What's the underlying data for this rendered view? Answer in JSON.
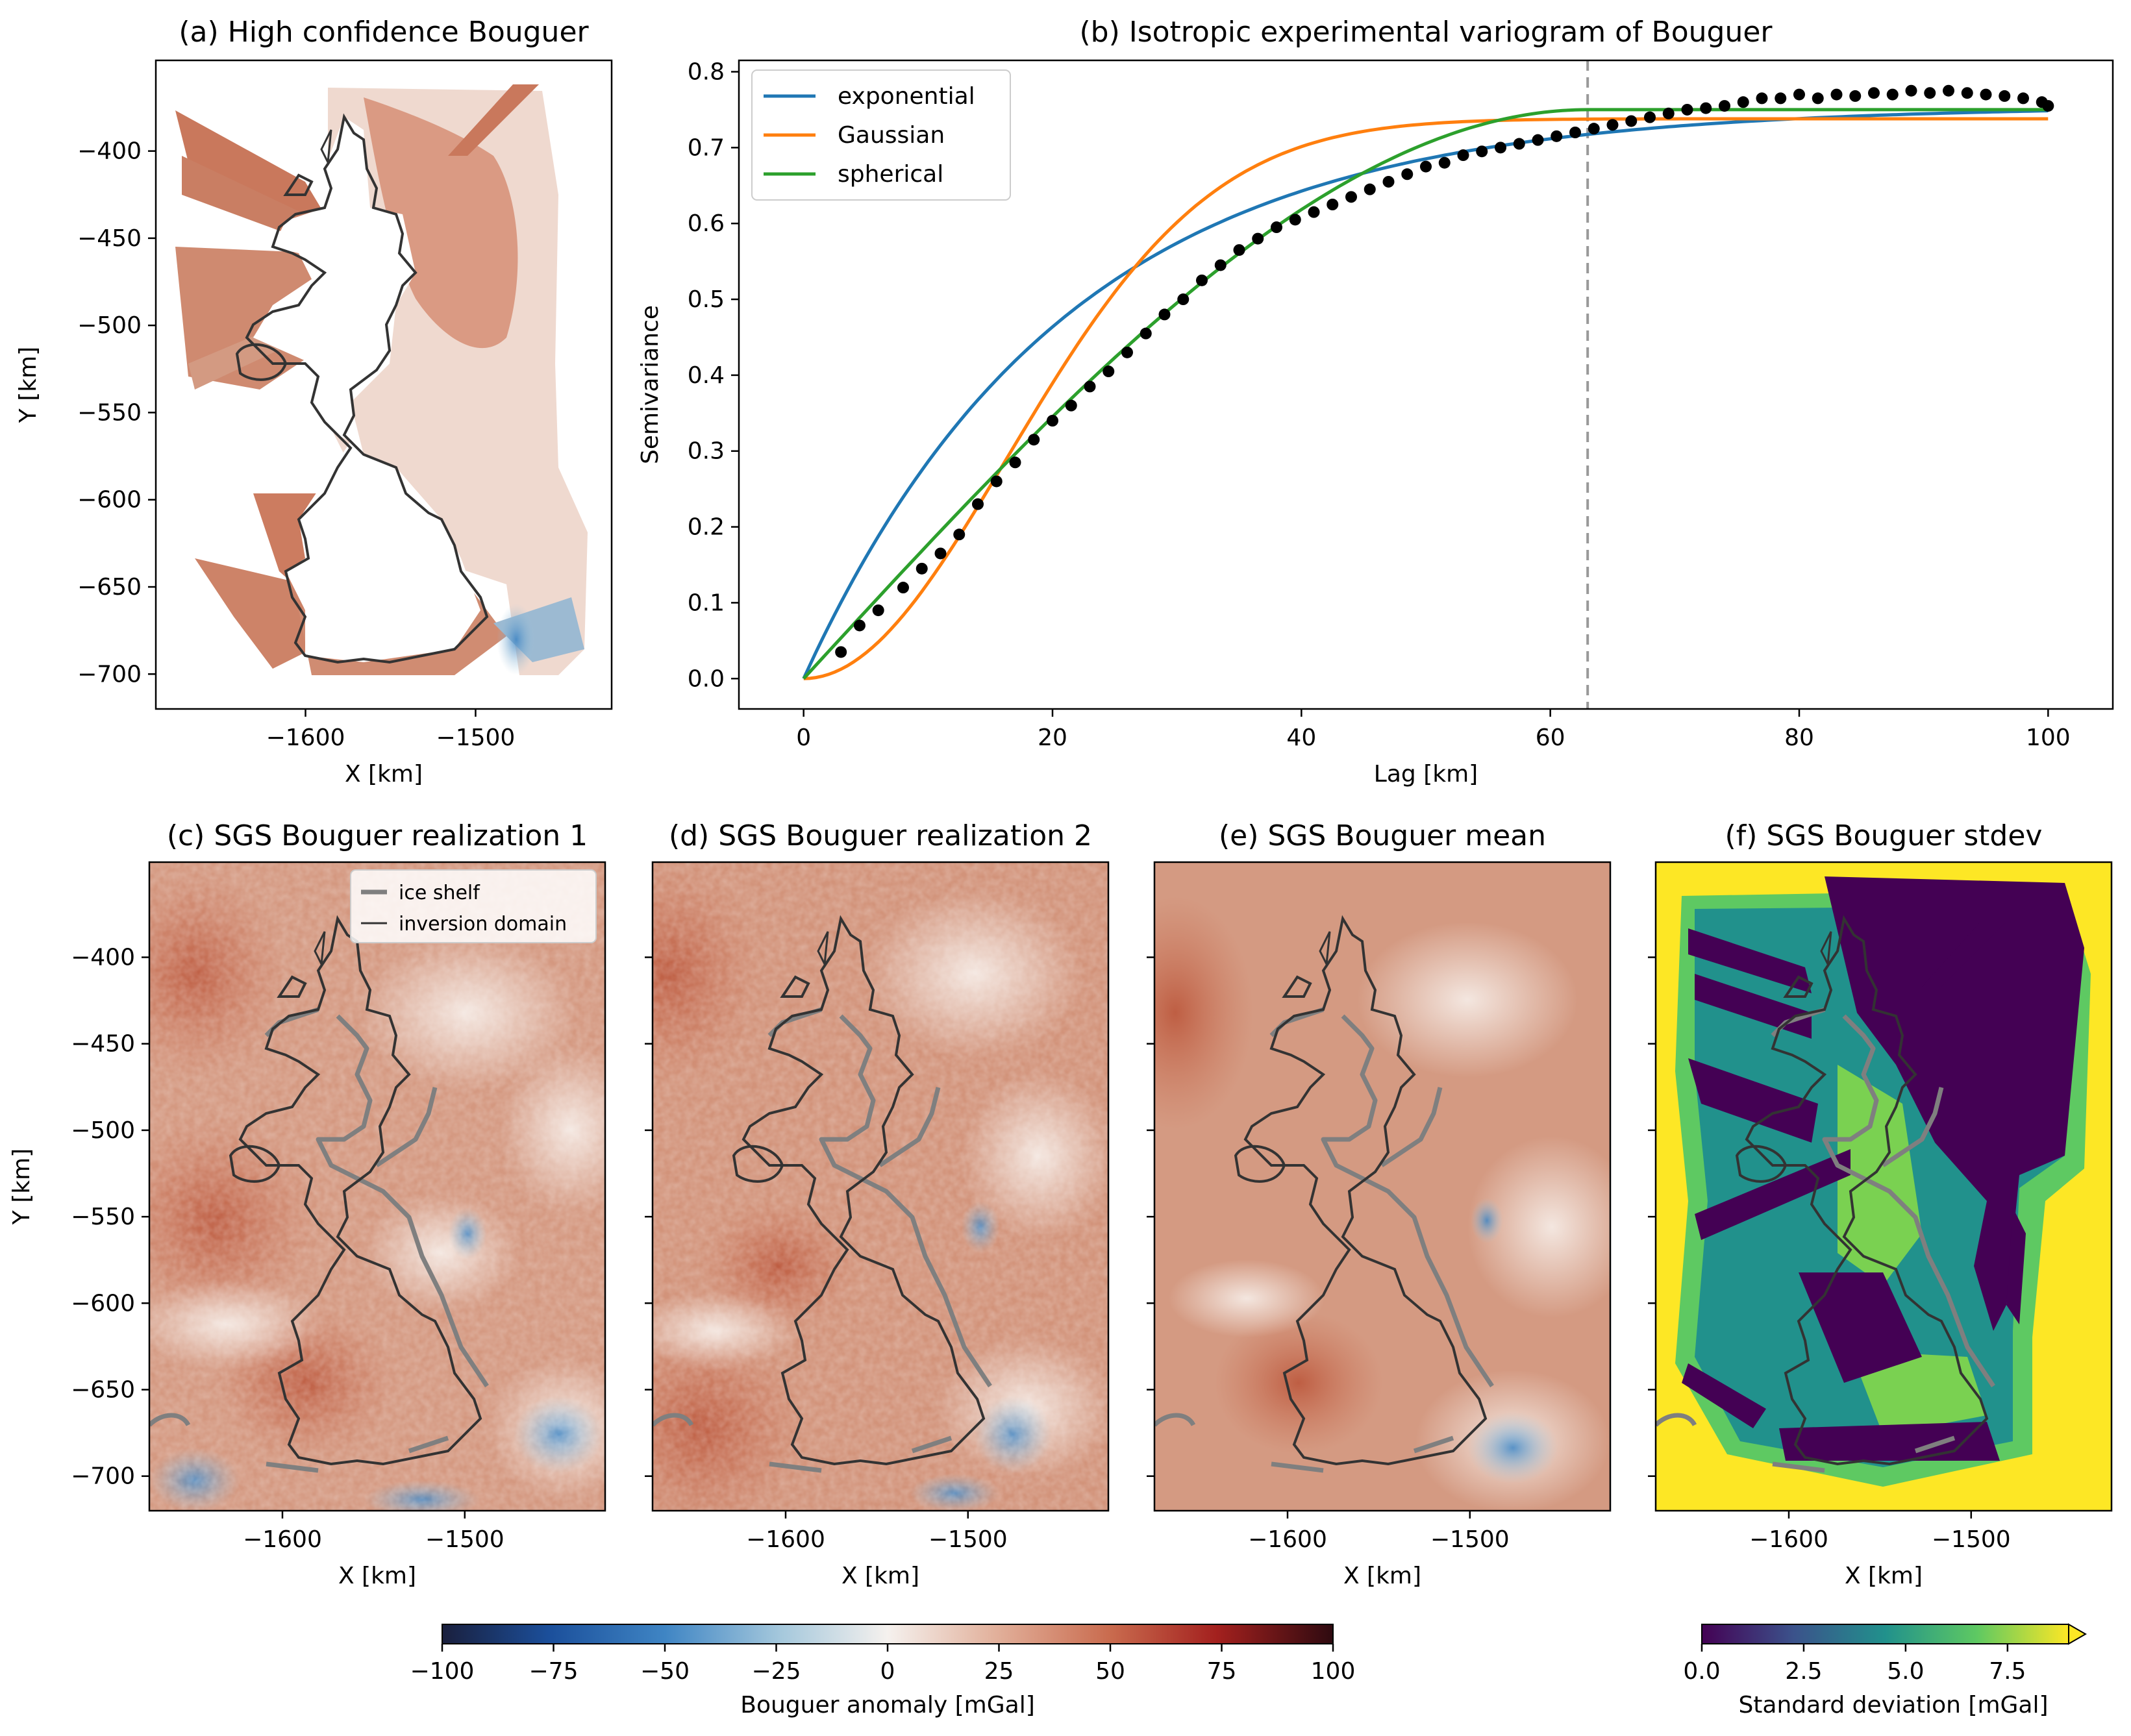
{
  "chart_data": [
    {
      "panel": "a",
      "type": "heatmap",
      "title": "(a) High confidence Bouguer",
      "xlabel": "X [km]",
      "ylabel": "Y [km]",
      "xlim": [
        -1688,
        -1420
      ],
      "ylim": [
        -720,
        -348
      ],
      "xticks": [
        -1600,
        -1500
      ],
      "yticks": [
        -400,
        -450,
        -500,
        -550,
        -600,
        -650,
        -700
      ],
      "xtick_labels": [
        "−1600",
        "−1500"
      ],
      "ytick_labels": [
        "−400",
        "−450",
        "−500",
        "−550",
        "−600",
        "−650",
        "−700"
      ],
      "colormap": "diverging blue-white-red",
      "color_range": [
        -100,
        100
      ]
    },
    {
      "panel": "b",
      "type": "scatter",
      "title": "(b) Isotropic experimental variogram of Bouguer",
      "xlabel": "Lag [km]",
      "ylabel": "Semivariance",
      "xlim": [
        -5.2,
        105.2
      ],
      "ylim": [
        -0.04,
        0.815
      ],
      "xticks": [
        0,
        20,
        40,
        60,
        80,
        100
      ],
      "yticks": [
        0.0,
        0.1,
        0.2,
        0.3,
        0.4,
        0.5,
        0.6,
        0.7,
        0.8
      ],
      "xtick_labels": [
        "0",
        "20",
        "40",
        "60",
        "80",
        "100"
      ],
      "ytick_labels": [
        "0.0",
        "0.1",
        "0.2",
        "0.3",
        "0.4",
        "0.5",
        "0.6",
        "0.7",
        "0.8"
      ],
      "vline_x": 63,
      "legend_position": "upper-left",
      "series": [
        {
          "name": "exponential",
          "color": "#1f77b4",
          "model": "exponential",
          "sill": 0.755,
          "range": 63
        },
        {
          "name": "Gaussian",
          "color": "#ff7f0e",
          "model": "gaussian",
          "sill": 0.738,
          "range": 40
        },
        {
          "name": "spherical",
          "color": "#2ca02c",
          "model": "spherical",
          "sill": 0.75,
          "range": 63
        }
      ],
      "experimental_points": {
        "x": [
          3,
          4.5,
          6,
          8,
          9.5,
          11,
          12.5,
          14,
          15.5,
          17,
          18.5,
          20,
          21.5,
          23,
          24.5,
          26,
          27.5,
          29,
          30.5,
          32,
          33.5,
          35,
          36.5,
          38,
          39.5,
          41,
          42.5,
          44,
          45.5,
          47,
          48.5,
          50,
          51.5,
          53,
          54.5,
          56,
          57.5,
          59,
          60.5,
          62,
          63.5,
          65,
          66.5,
          68,
          69.5,
          71,
          72.5,
          74,
          75.5,
          77,
          78.5,
          80,
          81.5,
          83,
          84.5,
          86,
          87.5,
          89,
          90.5,
          92,
          93.5,
          95,
          96.5,
          98,
          99.5,
          100
        ],
        "y": [
          0.035,
          0.07,
          0.09,
          0.12,
          0.145,
          0.165,
          0.19,
          0.23,
          0.26,
          0.285,
          0.315,
          0.34,
          0.36,
          0.385,
          0.405,
          0.43,
          0.455,
          0.48,
          0.5,
          0.525,
          0.545,
          0.565,
          0.58,
          0.595,
          0.605,
          0.615,
          0.625,
          0.635,
          0.645,
          0.655,
          0.665,
          0.675,
          0.68,
          0.69,
          0.695,
          0.7,
          0.705,
          0.71,
          0.715,
          0.72,
          0.725,
          0.73,
          0.735,
          0.74,
          0.745,
          0.75,
          0.752,
          0.755,
          0.76,
          0.765,
          0.765,
          0.77,
          0.765,
          0.77,
          0.768,
          0.772,
          0.77,
          0.775,
          0.772,
          0.775,
          0.772,
          0.77,
          0.768,
          0.765,
          0.76,
          0.755
        ]
      }
    },
    {
      "panel": "c",
      "type": "heatmap",
      "title": "(c) SGS Bouguer realization 1",
      "xlabel": "X [km]",
      "ylabel": "Y [km]",
      "xlim": [
        -1673,
        -1423
      ],
      "ylim": [
        -720,
        -345
      ],
      "xticks": [
        -1600,
        -1500
      ],
      "yticks": [
        -400,
        -450,
        -500,
        -550,
        -600,
        -650,
        -700
      ],
      "xtick_labels": [
        "−1600",
        "−1500"
      ],
      "ytick_labels": [
        "−400",
        "−450",
        "−500",
        "−550",
        "−600",
        "−650",
        "−700"
      ],
      "legend": [
        "ice shelf",
        "inversion domain"
      ],
      "colormap": "diverging blue-white-red",
      "color_range": [
        -100,
        100
      ]
    },
    {
      "panel": "d",
      "type": "heatmap",
      "title": "(d) SGS Bouguer realization 2",
      "xlabel": "X [km]",
      "xlim": [
        -1673,
        -1423
      ],
      "ylim": [
        -720,
        -345
      ],
      "xticks": [
        -1600,
        -1500
      ],
      "xtick_labels": [
        "−1600",
        "−1500"
      ],
      "colormap": "diverging blue-white-red",
      "color_range": [
        -100,
        100
      ]
    },
    {
      "panel": "e",
      "type": "heatmap",
      "title": "(e) SGS Bouguer mean",
      "xlabel": "X [km]",
      "xlim": [
        -1673,
        -1423
      ],
      "ylim": [
        -720,
        -345
      ],
      "xticks": [
        -1600,
        -1500
      ],
      "xtick_labels": [
        "−1600",
        "−1500"
      ],
      "colormap": "diverging blue-white-red",
      "color_range": [
        -100,
        100
      ]
    },
    {
      "panel": "f",
      "type": "heatmap",
      "title": "(f) SGS Bouguer stdev",
      "xlabel": "X [km]",
      "xlim": [
        -1673,
        -1423
      ],
      "ylim": [
        -720,
        -345
      ],
      "xticks": [
        -1600,
        -1500
      ],
      "xtick_labels": [
        "−1600",
        "−1500"
      ],
      "colormap": "viridis",
      "color_range": [
        0,
        9
      ]
    }
  ],
  "colorbars": {
    "bouguer": {
      "label": "Bouguer anomaly [mGal]",
      "ticks": [
        -100,
        -75,
        -50,
        -25,
        0,
        25,
        50,
        75,
        100
      ],
      "tick_labels": [
        "−100",
        "−75",
        "−50",
        "−25",
        "0",
        "25",
        "50",
        "75",
        "100"
      ],
      "range": [
        -100,
        100
      ]
    },
    "stdev": {
      "label": "Standard deviation [mGal]",
      "ticks": [
        0.0,
        2.5,
        5.0,
        7.5
      ],
      "tick_labels": [
        "0.0",
        "2.5",
        "5.0",
        "7.5"
      ],
      "range": [
        0,
        9
      ],
      "extend": "max"
    }
  },
  "colors": {
    "anomaly_red": "#c2603f",
    "anomaly_blue": "#3b80b6",
    "outline_black": "#333333",
    "outline_gray": "#7f7f7f",
    "vline": "#999999"
  }
}
